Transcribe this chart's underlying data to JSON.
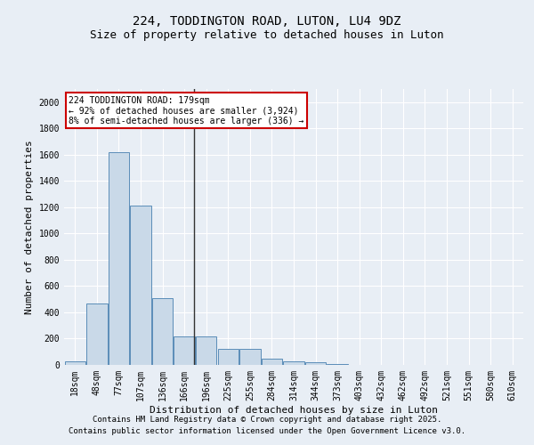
{
  "title1": "224, TODDINGTON ROAD, LUTON, LU4 9DZ",
  "title2": "Size of property relative to detached houses in Luton",
  "xlabel": "Distribution of detached houses by size in Luton",
  "ylabel": "Number of detached properties",
  "categories": [
    "18sqm",
    "48sqm",
    "77sqm",
    "107sqm",
    "136sqm",
    "166sqm",
    "196sqm",
    "225sqm",
    "255sqm",
    "284sqm",
    "314sqm",
    "344sqm",
    "373sqm",
    "403sqm",
    "432sqm",
    "462sqm",
    "492sqm",
    "521sqm",
    "551sqm",
    "580sqm",
    "610sqm"
  ],
  "values": [
    30,
    470,
    1620,
    1210,
    510,
    220,
    220,
    125,
    125,
    45,
    30,
    20,
    10,
    0,
    0,
    0,
    0,
    0,
    0,
    0,
    0
  ],
  "bar_color": "#c9d9e8",
  "bar_edge_color": "#5b8db8",
  "ylim": [
    0,
    2100
  ],
  "yticks": [
    0,
    200,
    400,
    600,
    800,
    1000,
    1200,
    1400,
    1600,
    1800,
    2000
  ],
  "annotation_text": "224 TODDINGTON ROAD: 179sqm\n← 92% of detached houses are smaller (3,924)\n8% of semi-detached houses are larger (336) →",
  "annotation_box_color": "#ffffff",
  "annotation_box_edge": "#cc0000",
  "vline_color": "#333333",
  "footer1": "Contains HM Land Registry data © Crown copyright and database right 2025.",
  "footer2": "Contains public sector information licensed under the Open Government Licence v3.0.",
  "bg_color": "#e8eef5",
  "plot_bg_color": "#e8eef5",
  "grid_color": "#ffffff",
  "title_fontsize": 10,
  "subtitle_fontsize": 9,
  "axis_fontsize": 8,
  "tick_fontsize": 7,
  "annotation_fontsize": 7,
  "footer_fontsize": 6.5
}
